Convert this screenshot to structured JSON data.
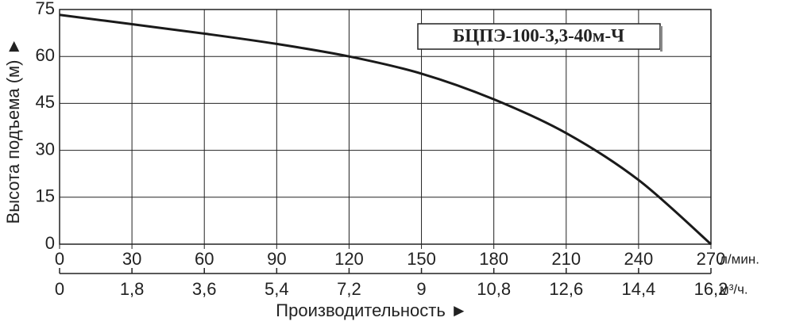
{
  "chart_data": {
    "type": "line",
    "title": "БЦПЭ-100-3,3-40м-Ч",
    "ylabel": "Высота подъема (м) ►",
    "xlabel": "Производительность ►",
    "xunit": "л/мин.",
    "x2unit": "м³/ч.",
    "x": [
      0,
      30,
      60,
      90,
      120,
      150,
      180,
      210,
      240,
      270
    ],
    "series": [
      {
        "name": "БЦПЭ-100-3,3-40м-Ч",
        "color": "#1a1a1a",
        "values": [
          73.3,
          70.3,
          67.3,
          64,
          60,
          54.5,
          46.3,
          35.5,
          20.5,
          0
        ]
      }
    ],
    "xlim": [
      0,
      270
    ],
    "xticks": [
      0,
      30,
      60,
      90,
      120,
      150,
      180,
      210,
      240,
      270
    ],
    "x2lim": [
      0,
      16.2
    ],
    "x2ticks": [
      0,
      {
        "value": 1.8,
        "label": "1,8"
      },
      {
        "value": 3.6,
        "label": "3,6"
      },
      {
        "value": 5.4,
        "label": "5,4"
      },
      {
        "value": 7.2,
        "label": "7,2"
      },
      9,
      {
        "value": 10.8,
        "label": "10,8"
      },
      {
        "value": 12.6,
        "label": "12,6"
      },
      {
        "value": 14.4,
        "label": "14,4"
      },
      {
        "value": 16.2,
        "label": "16,2"
      }
    ],
    "ylim": [
      0,
      75
    ],
    "yticks": [
      0,
      15,
      30,
      45,
      60,
      75
    ],
    "grid": true
  }
}
